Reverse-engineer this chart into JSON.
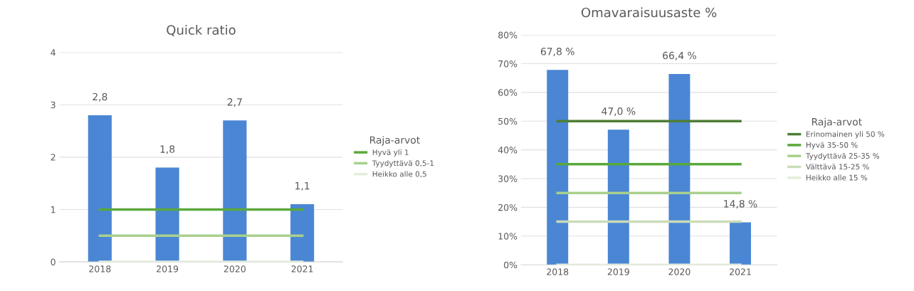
{
  "chart_data": [
    {
      "type": "bar",
      "title": "Quick ratio",
      "legend_title": "Raja-arvot",
      "categories": [
        "2018",
        "2019",
        "2020",
        "2021"
      ],
      "ylim": [
        0,
        4
      ],
      "yticks": [
        0,
        1,
        2,
        3,
        4
      ],
      "grid": "y",
      "legend": "right",
      "series": [
        {
          "color": "#4a86d4",
          "values": [
            2.8,
            1.8,
            2.7,
            1.1
          ],
          "value_labels": [
            "2,8",
            "1,8",
            "2,7",
            "1,1"
          ]
        },
        {
          "type": "line",
          "name": "Hyvä yli 1",
          "color": "#5aa83c",
          "values": [
            1,
            1,
            1,
            1
          ]
        },
        {
          "type": "line",
          "name": "Tyydyttävä 0,5-1",
          "color": "#a8d08d",
          "values": [
            0.5,
            0.5,
            0.5,
            0.5
          ]
        },
        {
          "type": "line",
          "name": "Heikko alle 0,5",
          "color": "#e2eedb",
          "values": [
            0,
            0,
            0,
            0
          ]
        }
      ]
    },
    {
      "type": "bar",
      "title": "Omavaraisuusaste %",
      "legend_title": "Raja-arvot",
      "categories": [
        "2018",
        "2019",
        "2020",
        "2021"
      ],
      "ylim": [
        0,
        80
      ],
      "yticks": [
        {
          "value": 0,
          "label": "0%"
        },
        {
          "value": 10,
          "label": "10%"
        },
        {
          "value": 20,
          "label": "20%"
        },
        {
          "value": 30,
          "label": "30%"
        },
        {
          "value": 40,
          "label": "40%"
        },
        {
          "value": 50,
          "label": "50%"
        },
        {
          "value": 60,
          "label": "60%"
        },
        {
          "value": 70,
          "label": "70%"
        },
        {
          "value": 80,
          "label": "80%"
        }
      ],
      "grid": "y",
      "legend": "right",
      "series": [
        {
          "color": "#4a86d4",
          "values": [
            67.8,
            47.0,
            66.4,
            14.8
          ],
          "value_labels": [
            "67,8 %",
            "47,0 %",
            "66,4 %",
            "14,8 %"
          ]
        },
        {
          "type": "line",
          "name": "Erinomainen yli 50 %",
          "color": "#4e7d36",
          "values": [
            50,
            50,
            50,
            50
          ]
        },
        {
          "type": "line",
          "name": "Hyvä 35-50 %",
          "color": "#5aa83c",
          "values": [
            35,
            35,
            35,
            35
          ]
        },
        {
          "type": "line",
          "name": "Tyydyttävä 25-35 %",
          "color": "#a8d08d",
          "values": [
            25,
            25,
            25,
            25
          ]
        },
        {
          "type": "line",
          "name": "Välttävä 15-25 %",
          "color": "#c9dcb8",
          "values": [
            15,
            15,
            15,
            15
          ]
        },
        {
          "type": "line",
          "name": "Heikko alle 15 %",
          "color": "#e2eedb",
          "values": [
            0,
            0,
            0,
            0
          ]
        }
      ]
    }
  ]
}
